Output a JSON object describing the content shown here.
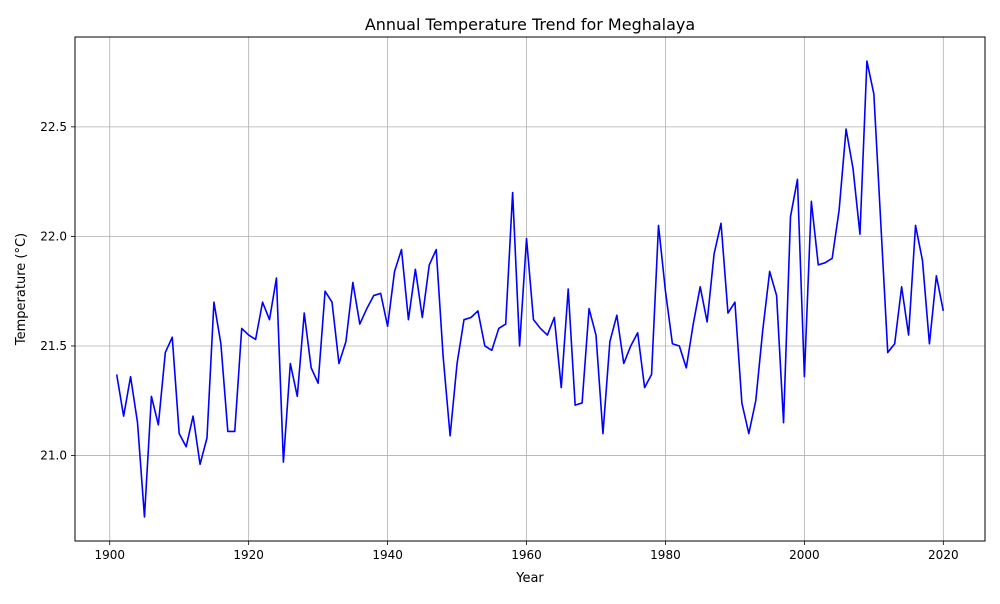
{
  "chart_data": {
    "type": "line",
    "title": "Annual Temperature Trend for Meghalaya",
    "xlabel": "Year",
    "ylabel": "Temperature (°C)",
    "xlim": [
      1895,
      2026
    ],
    "ylim": [
      20.61,
      22.91
    ],
    "x_ticks": [
      1900,
      1920,
      1940,
      1960,
      1980,
      2000,
      2020
    ],
    "y_ticks": [
      21.0,
      21.5,
      22.0,
      22.5
    ],
    "y_tick_labels": [
      "21.0",
      "21.5",
      "22.0",
      "22.5"
    ],
    "grid": true,
    "line_color": "#0000ff",
    "series": [
      {
        "x": [
          1901,
          1902,
          1903,
          1904,
          1905,
          1906,
          1907,
          1908,
          1909,
          1910,
          1911,
          1912,
          1913,
          1914,
          1915,
          1916,
          1917,
          1918,
          1919,
          1920,
          1921,
          1922,
          1923,
          1924,
          1925,
          1926,
          1927,
          1928,
          1929,
          1930,
          1931,
          1932,
          1933,
          1934,
          1935,
          1936,
          1937,
          1938,
          1939,
          1940,
          1941,
          1942,
          1943,
          1944,
          1945,
          1946,
          1947,
          1948,
          1949,
          1950,
          1951,
          1952,
          1953,
          1954,
          1955,
          1956,
          1957,
          1958,
          1959,
          1960,
          1961,
          1962,
          1963,
          1964,
          1965,
          1966,
          1967,
          1968,
          1969,
          1970,
          1971,
          1972,
          1973,
          1974,
          1975,
          1976,
          1977,
          1978,
          1979,
          1980,
          1981,
          1982,
          1983,
          1984,
          1985,
          1986,
          1987,
          1988,
          1989,
          1990,
          1991,
          1992,
          1993,
          1994,
          1995,
          1996,
          1997,
          1998,
          1999,
          2000,
          2001,
          2002,
          2003,
          2004,
          2005,
          2006,
          2007,
          2008,
          2009,
          2010,
          2011,
          2012,
          2013,
          2014,
          2015,
          2016,
          2017,
          2018,
          2019,
          2020
        ],
        "values": [
          21.37,
          21.18,
          21.36,
          21.15,
          20.72,
          21.27,
          21.14,
          21.47,
          21.54,
          21.1,
          21.04,
          21.18,
          20.96,
          21.08,
          21.7,
          21.51,
          21.11,
          21.11,
          21.58,
          21.55,
          21.53,
          21.7,
          21.62,
          21.81,
          20.97,
          21.42,
          21.27,
          21.65,
          21.4,
          21.33,
          21.75,
          21.7,
          21.42,
          21.52,
          21.79,
          21.6,
          21.67,
          21.73,
          21.74,
          21.59,
          21.84,
          21.94,
          21.62,
          21.85,
          21.63,
          21.87,
          21.94,
          21.45,
          21.09,
          21.42,
          21.62,
          21.63,
          21.66,
          21.5,
          21.48,
          21.58,
          21.6,
          22.2,
          21.5,
          21.99,
          21.62,
          21.58,
          21.55,
          21.63,
          21.31,
          21.76,
          21.23,
          21.24,
          21.67,
          21.55,
          21.1,
          21.52,
          21.64,
          21.42,
          21.5,
          21.56,
          21.31,
          21.37,
          22.05,
          21.75,
          21.51,
          21.5,
          21.4,
          21.6,
          21.77,
          21.61,
          21.92,
          22.06,
          21.65,
          21.7,
          21.24,
          21.1,
          21.25,
          21.57,
          21.84,
          21.73,
          21.15,
          22.09,
          22.26,
          21.36,
          22.16,
          21.87,
          21.88,
          21.9,
          22.12,
          22.49,
          22.31,
          22.01,
          22.8,
          22.65,
          22.06,
          21.47,
          21.51,
          21.77,
          21.55,
          22.05,
          21.89,
          21.51,
          21.82,
          21.66
        ]
      }
    ]
  }
}
